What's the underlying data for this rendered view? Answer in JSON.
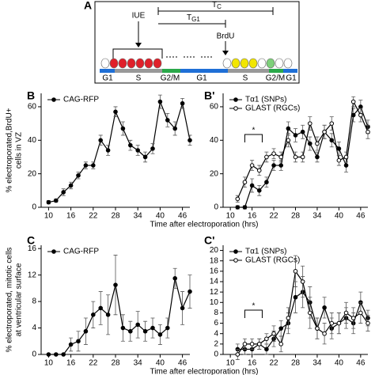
{
  "schematic": {
    "label": "A",
    "tc": {
      "main": "T",
      "sub": "C"
    },
    "tg1": {
      "main": "T",
      "sub": "G1"
    },
    "iue": "IUE",
    "brdu": "BrdU",
    "phases": [
      "G1",
      "S",
      "G2/M",
      "G1",
      "S",
      "G2/M",
      "G1"
    ]
  },
  "chart_data": [
    {
      "type": "line",
      "panel_label": "B",
      "ylabel": [
        "% electroporated,BrdU+",
        "cells in VZ"
      ],
      "xlabel": "Time after electroporation (hrs)",
      "x": [
        10,
        12,
        14,
        16,
        18,
        20,
        22,
        24,
        26,
        28,
        30,
        32,
        34,
        36,
        38,
        40,
        42,
        44,
        46,
        48
      ],
      "xlim": [
        8,
        48
      ],
      "xticks": [
        10,
        16,
        22,
        28,
        34,
        40,
        46
      ],
      "ylim": [
        0,
        68
      ],
      "yticks": [
        0,
        20,
        40,
        60
      ],
      "legend": "upper left",
      "series": [
        {
          "name": "CAG-RFP",
          "color": "#000000",
          "marker": "filled",
          "values": [
            3,
            4,
            9,
            13,
            19,
            25,
            25,
            40,
            34,
            57,
            47,
            37,
            34,
            30,
            35,
            63,
            52,
            47,
            62,
            40
          ],
          "errors": [
            1,
            1,
            2,
            2,
            2,
            2,
            2,
            3,
            3,
            3,
            4,
            3,
            3,
            3,
            3,
            4,
            4,
            4,
            3,
            3
          ]
        }
      ]
    },
    {
      "type": "line",
      "panel_label": "B'",
      "annotation": "*",
      "x": [
        12,
        14,
        16,
        18,
        20,
        22,
        24,
        26,
        28,
        30,
        32,
        34,
        36,
        38,
        40,
        42,
        44,
        46,
        48
      ],
      "xlim": [
        8,
        48
      ],
      "xticks": [
        10,
        16,
        22,
        28,
        34,
        40,
        46
      ],
      "ylim": [
        0,
        68
      ],
      "yticks": [
        0,
        20,
        40,
        60
      ],
      "legend": "upper left",
      "series": [
        {
          "name": "Tα1 (SNPs)",
          "color": "#000000",
          "marker": "filled",
          "values": [
            0,
            0,
            13,
            10,
            15,
            25,
            25,
            47,
            43,
            45,
            38,
            30,
            45,
            40,
            35,
            25,
            55,
            60,
            48
          ],
          "errors": [
            1,
            1,
            4,
            3,
            3,
            3,
            3,
            4,
            4,
            4,
            4,
            3,
            4,
            4,
            4,
            4,
            4,
            4,
            4
          ]
        },
        {
          "name": "GLAST (RGCs)",
          "color": "#000000",
          "marker": "open",
          "values": [
            5,
            15,
            25,
            22,
            30,
            32,
            30,
            40,
            30,
            30,
            50,
            38,
            45,
            50,
            28,
            30,
            63,
            55,
            45
          ],
          "errors": [
            2,
            3,
            3,
            3,
            3,
            3,
            3,
            4,
            3,
            3,
            4,
            4,
            4,
            4,
            3,
            3,
            3,
            4,
            4
          ]
        }
      ]
    },
    {
      "type": "line",
      "panel_label": "C",
      "ylabel": [
        "% electroporated, mitotic cells",
        "at ventricular surface"
      ],
      "xlabel": "Time after electroporation (hrs)",
      "x": [
        10,
        12,
        14,
        16,
        18,
        20,
        22,
        24,
        26,
        28,
        30,
        32,
        34,
        36,
        38,
        40,
        42,
        44,
        46,
        48
      ],
      "xlim": [
        8,
        48
      ],
      "xticks": [
        10,
        16,
        22,
        28,
        34,
        40,
        46
      ],
      "ylim": [
        0,
        16.5
      ],
      "yticks": [
        0,
        4,
        8,
        12,
        16
      ],
      "legend": "upper left",
      "series": [
        {
          "name": "CAG-RFP",
          "color": "#000000",
          "marker": "filled",
          "values": [
            0,
            0,
            0,
            1.5,
            2,
            3.5,
            6,
            7,
            6,
            10.5,
            4,
            3.5,
            4.5,
            3.5,
            4,
            3,
            4,
            11.5,
            7,
            9.5
          ],
          "errors": [
            0,
            0,
            0,
            1,
            1.5,
            2,
            2,
            2.5,
            3,
            4.5,
            2,
            1.5,
            2,
            1.5,
            1.5,
            1.5,
            1.5,
            1.5,
            2.5,
            2.5
          ]
        }
      ]
    },
    {
      "type": "line",
      "panel_label": "C'",
      "annotation": "*",
      "x": [
        12,
        14,
        16,
        18,
        20,
        22,
        24,
        26,
        28,
        30,
        32,
        34,
        36,
        38,
        40,
        42,
        44,
        46,
        48
      ],
      "xlim": [
        8,
        48
      ],
      "xticks": [
        10,
        16,
        22,
        28,
        34,
        40,
        46
      ],
      "ylim": [
        0,
        21
      ],
      "yticks": [
        0,
        2,
        4,
        6,
        8,
        10,
        12,
        14,
        16,
        18,
        20
      ],
      "legend": "upper left",
      "series": [
        {
          "name": "Tα1 (SNPs)",
          "color": "#000000",
          "marker": "filled",
          "values": [
            1,
            1,
            1,
            2,
            1,
            3,
            5,
            6,
            11,
            12,
            10,
            5,
            9,
            5,
            6,
            7,
            6,
            10,
            7
          ],
          "errors": [
            1,
            1,
            1,
            1,
            1,
            1.5,
            1.5,
            2,
            3,
            3,
            3,
            2,
            2,
            2,
            2,
            2,
            2,
            2,
            1.5
          ]
        },
        {
          "name": "GLAST (RGCs)",
          "color": "#000000",
          "marker": "open",
          "values": [
            0,
            2,
            2,
            2,
            3,
            4,
            2,
            7,
            16,
            14,
            8,
            5,
            4,
            6,
            6,
            8,
            7,
            8,
            6
          ],
          "errors": [
            1,
            1,
            1,
            1,
            1,
            1.5,
            1.5,
            2,
            3,
            3,
            3,
            2,
            2,
            2,
            2,
            2,
            2,
            2,
            1.5
          ]
        }
      ]
    }
  ]
}
